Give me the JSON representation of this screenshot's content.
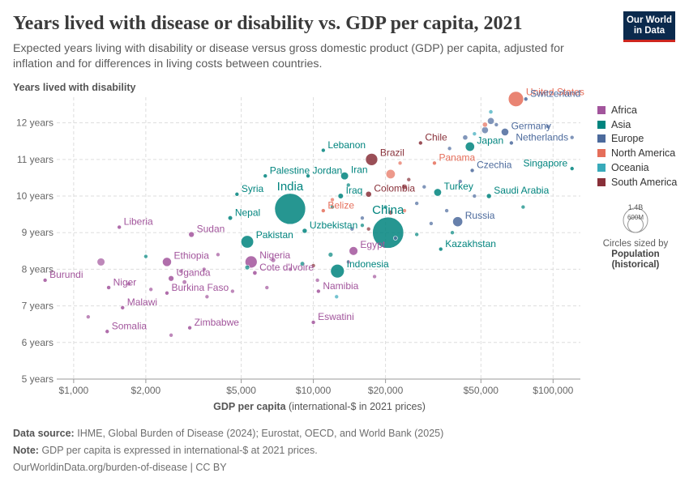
{
  "header": {
    "title": "Years lived with disease or disability vs. GDP per capita, 2021",
    "subtitle": "Expected years living with disability or disease versus gross domestic product (GDP) per capita, adjusted for inflation and for differences in living costs between countries.",
    "logo_line1": "Our World",
    "logo_line2": "in Data"
  },
  "footer": {
    "source_label": "Data source:",
    "source_text": "IHME, Global Burden of Disease (2024); Eurostat, OECD, and World Bank (2025)",
    "note_label": "Note:",
    "note_text": "GDP per capita is expressed in international-$ at 2021 prices.",
    "url": "OurWorldinData.org/burden-of-disease | CC BY"
  },
  "legend": {
    "regions": [
      {
        "name": "Africa",
        "color": "#a2559c"
      },
      {
        "name": "Asia",
        "color": "#00847e"
      },
      {
        "name": "Europe",
        "color": "#4c6a9c"
      },
      {
        "name": "North America",
        "color": "#e56e5a"
      },
      {
        "name": "Oceania",
        "color": "#38aaba"
      },
      {
        "name": "South America",
        "color": "#883039"
      }
    ],
    "size_max_label": "1.4B",
    "size_min_label": "600M",
    "size_caption": "Circles sized by",
    "size_variable_line1": "Population",
    "size_variable_line2": "(historical)"
  },
  "chart_data": {
    "type": "scatter",
    "title": "Years lived with disease or disability vs. GDP per capita, 2021",
    "ylabel": "Years lived with disability",
    "xlabel": "GDP per capita",
    "xlabel_units": "(international-$ in 2021 prices)",
    "x_scale": "log",
    "xlim": [
      850,
      130000
    ],
    "ylim": [
      5,
      12.7
    ],
    "x_ticks": [
      1000,
      2000,
      5000,
      10000,
      20000,
      50000,
      100000
    ],
    "x_tick_labels": [
      "$1,000",
      "$2,000",
      "$5,000",
      "$10,000",
      "$20,000",
      "$50,000",
      "$100,000"
    ],
    "y_ticks": [
      5,
      6,
      7,
      8,
      9,
      10,
      11,
      12
    ],
    "y_tick_labels": [
      "5 years",
      "6 years",
      "7 years",
      "8 years",
      "9 years",
      "10 years",
      "11 years",
      "12 years"
    ],
    "grid": true,
    "points": [
      {
        "label": "United States",
        "region": "North America",
        "x": 70000,
        "y": 12.65,
        "pop": 337
      },
      {
        "label": "Switzerland",
        "region": "Europe",
        "x": 77000,
        "y": 12.65,
        "pop": 9
      },
      {
        "label": "Germany",
        "region": "Europe",
        "x": 63000,
        "y": 11.75,
        "pop": 83
      },
      {
        "label": "Japan",
        "region": "Asia",
        "x": 45000,
        "y": 11.35,
        "pop": 125
      },
      {
        "label": "Netherlands",
        "region": "Europe",
        "x": 67000,
        "y": 11.45,
        "pop": 18
      },
      {
        "label": "Chile",
        "region": "South America",
        "x": 28000,
        "y": 11.45,
        "pop": 19
      },
      {
        "label": "Lebanon",
        "region": "Asia",
        "x": 11000,
        "y": 11.25,
        "pop": 5
      },
      {
        "label": "Brazil",
        "region": "South America",
        "x": 17500,
        "y": 11.0,
        "pop": 214
      },
      {
        "label": "Panama",
        "region": "North America",
        "x": 32000,
        "y": 10.9,
        "pop": 4
      },
      {
        "label": "Singapore",
        "region": "Asia",
        "x": 120000,
        "y": 10.75,
        "pop": 6
      },
      {
        "label": "Czechia",
        "region": "Europe",
        "x": 46000,
        "y": 10.7,
        "pop": 11
      },
      {
        "label": "Palestine",
        "region": "Asia",
        "x": 6300,
        "y": 10.55,
        "pop": 5
      },
      {
        "label": "Jordan",
        "region": "Asia",
        "x": 9500,
        "y": 10.55,
        "pop": 11
      },
      {
        "label": "Iran",
        "region": "Asia",
        "x": 13500,
        "y": 10.55,
        "pop": 88
      },
      {
        "label": "Turkey",
        "region": "Asia",
        "x": 33000,
        "y": 10.1,
        "pop": 85
      },
      {
        "label": "Colombia",
        "region": "South America",
        "x": 17000,
        "y": 10.05,
        "pop": 51
      },
      {
        "label": "Iraq",
        "region": "Asia",
        "x": 13000,
        "y": 10.0,
        "pop": 43
      },
      {
        "label": "Syria",
        "region": "Asia",
        "x": 4800,
        "y": 10.05,
        "pop": 21
      },
      {
        "label": "Saudi Arabia",
        "region": "Asia",
        "x": 54000,
        "y": 10.0,
        "pop": 36
      },
      {
        "label": "India",
        "region": "Asia",
        "x": 8000,
        "y": 9.65,
        "pop": 1400
      },
      {
        "label": "Belize",
        "region": "North America",
        "x": 11000,
        "y": 9.6,
        "pop": 0.4
      },
      {
        "label": "China",
        "region": "Asia",
        "x": 20500,
        "y": 9.0,
        "pop": 1425
      },
      {
        "label": "Nepal",
        "region": "Asia",
        "x": 4500,
        "y": 9.4,
        "pop": 30
      },
      {
        "label": "Russia",
        "region": "Europe",
        "x": 40000,
        "y": 9.3,
        "pop": 145
      },
      {
        "label": "Liberia",
        "region": "Africa",
        "x": 1550,
        "y": 9.15,
        "pop": 5
      },
      {
        "label": "Sudan",
        "region": "Africa",
        "x": 3100,
        "y": 8.95,
        "pop": 46
      },
      {
        "label": "Uzbekistan",
        "region": "Asia",
        "x": 9200,
        "y": 9.05,
        "pop": 35
      },
      {
        "label": "Kazakhstan",
        "region": "Asia",
        "x": 34000,
        "y": 8.55,
        "pop": 19
      },
      {
        "label": "Pakistan",
        "region": "Asia",
        "x": 5300,
        "y": 8.75,
        "pop": 231
      },
      {
        "label": "Egypt",
        "region": "Africa",
        "x": 14700,
        "y": 8.5,
        "pop": 110
      },
      {
        "label": "Nigeria",
        "region": "Africa",
        "x": 5500,
        "y": 8.2,
        "pop": 213
      },
      {
        "label": "Indonesia",
        "region": "Asia",
        "x": 12600,
        "y": 7.95,
        "pop": 274
      },
      {
        "label": "Ethiopia",
        "region": "Africa",
        "x": 2450,
        "y": 8.2,
        "pop": 120
      },
      {
        "label": "Cote d'Ivoire",
        "region": "Africa",
        "x": 5700,
        "y": 7.9,
        "pop": 28
      },
      {
        "label": "Uganda",
        "region": "Africa",
        "x": 2550,
        "y": 7.75,
        "pop": 46
      },
      {
        "label": "Burundi",
        "region": "Africa",
        "x": 760,
        "y": 7.7,
        "pop": 12
      },
      {
        "label": "Niger",
        "region": "Africa",
        "x": 1400,
        "y": 7.5,
        "pop": 25
      },
      {
        "label": "Namibia",
        "region": "Africa",
        "x": 10500,
        "y": 7.4,
        "pop": 2.5
      },
      {
        "label": "Burkina Faso",
        "region": "Africa",
        "x": 2450,
        "y": 7.35,
        "pop": 22
      },
      {
        "label": "Malawi",
        "region": "Africa",
        "x": 1600,
        "y": 6.95,
        "pop": 20
      },
      {
        "label": "Eswatini",
        "region": "Africa",
        "x": 10000,
        "y": 6.55,
        "pop": 1.2
      },
      {
        "label": "Zimbabwe",
        "region": "Africa",
        "x": 3050,
        "y": 6.4,
        "pop": 16
      },
      {
        "label": "Somalia",
        "region": "Africa",
        "x": 1380,
        "y": 6.3,
        "pop": 17
      }
    ],
    "unlabeled_points": [
      {
        "region": "Africa",
        "x": 1300,
        "y": 8.2,
        "pop": 90
      },
      {
        "region": "Asia",
        "x": 2000,
        "y": 8.35,
        "pop": 10
      },
      {
        "region": "Asia",
        "x": 5300,
        "y": 8.05,
        "pop": 33
      },
      {
        "region": "Asia",
        "x": 11800,
        "y": 8.4,
        "pop": 33
      },
      {
        "region": "Asia",
        "x": 9000,
        "y": 8.15,
        "pop": 30
      },
      {
        "region": "Asia",
        "x": 14000,
        "y": 10.3,
        "pop": 5
      },
      {
        "region": "Asia",
        "x": 20000,
        "y": 9.7,
        "pop": 5
      },
      {
        "region": "Asia",
        "x": 27000,
        "y": 8.95,
        "pop": 17
      },
      {
        "region": "Asia",
        "x": 38000,
        "y": 9.0,
        "pop": 10
      },
      {
        "region": "Asia",
        "x": 75000,
        "y": 9.7,
        "pop": 4
      },
      {
        "region": "Europe",
        "x": 55000,
        "y": 12.05,
        "pop": 67
      },
      {
        "region": "Europe",
        "x": 52000,
        "y": 11.8,
        "pop": 68
      },
      {
        "region": "Europe",
        "x": 58000,
        "y": 11.95,
        "pop": 6
      },
      {
        "region": "Europe",
        "x": 95000,
        "y": 11.9,
        "pop": 5
      },
      {
        "region": "Europe",
        "x": 120000,
        "y": 11.6,
        "pop": 5
      },
      {
        "region": "Europe",
        "x": 43000,
        "y": 11.6,
        "pop": 38
      },
      {
        "region": "Europe",
        "x": 37000,
        "y": 11.3,
        "pop": 10
      },
      {
        "region": "Europe",
        "x": 41000,
        "y": 10.4,
        "pop": 19
      },
      {
        "region": "Europe",
        "x": 29000,
        "y": 10.25,
        "pop": 9
      },
      {
        "region": "Europe",
        "x": 47000,
        "y": 10.0,
        "pop": 8
      },
      {
        "region": "Europe",
        "x": 31000,
        "y": 9.25,
        "pop": 7
      },
      {
        "region": "Europe",
        "x": 36000,
        "y": 9.6,
        "pop": 4
      },
      {
        "region": "Europe",
        "x": 27000,
        "y": 9.8,
        "pop": 3
      },
      {
        "region": "Europe",
        "x": 16000,
        "y": 9.4,
        "pop": 3
      },
      {
        "region": "Europe",
        "x": 14500,
        "y": 9.1,
        "pop": 2
      },
      {
        "region": "Europe",
        "x": 22000,
        "y": 8.85,
        "pop": 2
      },
      {
        "region": "North America",
        "x": 52000,
        "y": 11.95,
        "pop": 38
      },
      {
        "region": "North America",
        "x": 21000,
        "y": 10.6,
        "pop": 126
      },
      {
        "region": "North America",
        "x": 23000,
        "y": 10.9,
        "pop": 5
      },
      {
        "region": "North America",
        "x": 24000,
        "y": 9.6,
        "pop": 3
      },
      {
        "region": "North America",
        "x": 12000,
        "y": 9.9,
        "pop": 11
      },
      {
        "region": "Oceania",
        "x": 55000,
        "y": 12.3,
        "pop": 26
      },
      {
        "region": "Oceania",
        "x": 47000,
        "y": 11.7,
        "pop": 5
      },
      {
        "region": "Oceania",
        "x": 12500,
        "y": 7.25,
        "pop": 1
      },
      {
        "region": "South America",
        "x": 24000,
        "y": 10.25,
        "pop": 45
      },
      {
        "region": "South America",
        "x": 21000,
        "y": 9.55,
        "pop": 33
      },
      {
        "region": "South America",
        "x": 25000,
        "y": 10.45,
        "pop": 3
      },
      {
        "region": "South America",
        "x": 10000,
        "y": 8.1,
        "pop": 12
      },
      {
        "region": "South America",
        "x": 17000,
        "y": 9.1,
        "pop": 7
      },
      {
        "region": "Africa",
        "x": 1150,
        "y": 6.7,
        "pop": 4
      },
      {
        "region": "Africa",
        "x": 1700,
        "y": 7.6,
        "pop": 9
      },
      {
        "region": "Africa",
        "x": 2100,
        "y": 7.45,
        "pop": 14
      },
      {
        "region": "Africa",
        "x": 2900,
        "y": 7.65,
        "pop": 30
      },
      {
        "region": "Africa",
        "x": 2550,
        "y": 6.2,
        "pop": 3
      },
      {
        "region": "Africa",
        "x": 3600,
        "y": 7.25,
        "pop": 6
      },
      {
        "region": "Africa",
        "x": 4600,
        "y": 7.4,
        "pop": 5
      },
      {
        "region": "Africa",
        "x": 4000,
        "y": 8.4,
        "pop": 8
      },
      {
        "region": "Africa",
        "x": 6400,
        "y": 7.5,
        "pop": 3
      },
      {
        "region": "Africa",
        "x": 6800,
        "y": 8.25,
        "pop": 34
      },
      {
        "region": "Africa",
        "x": 8000,
        "y": 8.0,
        "pop": 2
      },
      {
        "region": "Africa",
        "x": 10400,
        "y": 7.7,
        "pop": 2
      },
      {
        "region": "Africa",
        "x": 18000,
        "y": 7.8,
        "pop": 2
      },
      {
        "region": "Africa",
        "x": 14000,
        "y": 8.2,
        "pop": 2
      },
      {
        "region": "Africa",
        "x": 3500,
        "y": 8.0,
        "pop": 13
      },
      {
        "region": "Africa",
        "x": 2800,
        "y": 7.95,
        "pop": 12
      },
      {
        "region": "Asia",
        "x": 16000,
        "y": 9.2,
        "pop": 6
      },
      {
        "region": "Asia",
        "x": 12000,
        "y": 9.7,
        "pop": 4
      }
    ]
  }
}
